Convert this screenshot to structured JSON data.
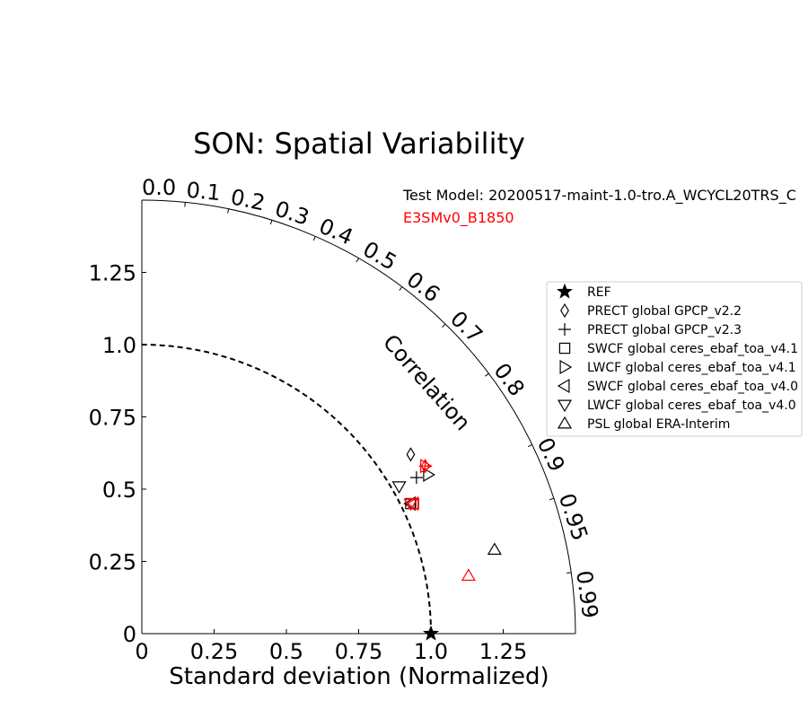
{
  "chart_data": {
    "type": "scatter",
    "subtype": "taylor-diagram",
    "title": "SON: Spatial Variability",
    "xlabel": "Standard deviation (Normalized)",
    "corr_axis_label": "Correlation",
    "std_range": [
      0,
      1.5
    ],
    "std_ticks": [
      {
        "value": 0,
        "label": "0"
      },
      {
        "value": 0.25,
        "label": "0.25"
      },
      {
        "value": 0.5,
        "label": "0.5"
      },
      {
        "value": 0.75,
        "label": "0.75"
      },
      {
        "value": 1.0,
        "label": "1.0"
      },
      {
        "value": 1.25,
        "label": "1.25"
      }
    ],
    "corr_ticks": [
      {
        "value": 0.0,
        "label": "0.0"
      },
      {
        "value": 0.1,
        "label": "0.1"
      },
      {
        "value": 0.2,
        "label": "0.2"
      },
      {
        "value": 0.3,
        "label": "0.3"
      },
      {
        "value": 0.4,
        "label": "0.4"
      },
      {
        "value": 0.5,
        "label": "0.5"
      },
      {
        "value": 0.6,
        "label": "0.6"
      },
      {
        "value": 0.7,
        "label": "0.7"
      },
      {
        "value": 0.8,
        "label": "0.8"
      },
      {
        "value": 0.9,
        "label": "0.9"
      },
      {
        "value": 0.95,
        "label": "0.95"
      },
      {
        "value": 0.99,
        "label": "0.99"
      }
    ],
    "reference_std": 1.0,
    "model_labels": [
      {
        "text": "Test Model: 20200517-maint-1.0-tro.A_WCYCL20TRS_C",
        "color": "#000000"
      },
      {
        "text": "E3SMv0_B1850",
        "color": "#ff0000"
      }
    ],
    "legend": {
      "placement": "right",
      "entries": [
        {
          "label": "REF",
          "marker": "star"
        },
        {
          "label": "PRECT global GPCP_v2.2",
          "marker": "diamond"
        },
        {
          "label": "PRECT global GPCP_v2.3",
          "marker": "plus"
        },
        {
          "label": "SWCF global ceres_ebaf_toa_v4.1",
          "marker": "square"
        },
        {
          "label": "LWCF global ceres_ebaf_toa_v4.1",
          "marker": "triangle-right"
        },
        {
          "label": "SWCF global ceres_ebaf_toa_v4.0",
          "marker": "triangle-left"
        },
        {
          "label": "LWCF global ceres_ebaf_toa_v4.0",
          "marker": "triangle-down"
        },
        {
          "label": "PSL global ERA-Interim",
          "marker": "triangle-up"
        }
      ]
    },
    "series": [
      {
        "model": "Test Model",
        "color": "#000000",
        "points": [
          {
            "variable": "PRECT global GPCP_v2.2",
            "marker": "diamond",
            "x": 0.93,
            "y": 0.62
          },
          {
            "variable": "PRECT global GPCP_v2.3",
            "marker": "plus",
            "x": 0.95,
            "y": 0.54
          },
          {
            "variable": "SWCF global ceres_ebaf_toa_v4.1",
            "marker": "square",
            "x": 0.93,
            "y": 0.45
          },
          {
            "variable": "LWCF global ceres_ebaf_toa_v4.1",
            "marker": "triangle-right",
            "x": 0.99,
            "y": 0.55
          },
          {
            "variable": "SWCF global ceres_ebaf_toa_v4.0",
            "marker": "triangle-left",
            "x": 0.93,
            "y": 0.45
          },
          {
            "variable": "LWCF global ceres_ebaf_toa_v4.0",
            "marker": "triangle-down",
            "x": 0.89,
            "y": 0.51
          },
          {
            "variable": "PSL global ERA-Interim",
            "marker": "triangle-up",
            "x": 1.22,
            "y": 0.29
          }
        ]
      },
      {
        "model": "E3SMv0_B1850",
        "color": "#ff0000",
        "points": [
          {
            "variable": "PRECT global GPCP_v2.2",
            "marker": "diamond",
            "x": 0.98,
            "y": 0.58
          },
          {
            "variable": "PRECT global GPCP_v2.3",
            "marker": "plus",
            "x": 0.98,
            "y": 0.58
          },
          {
            "variable": "SWCF global ceres_ebaf_toa_v4.1",
            "marker": "square",
            "x": 0.94,
            "y": 0.45
          },
          {
            "variable": "LWCF global ceres_ebaf_toa_v4.1",
            "marker": "triangle-right",
            "x": 0.98,
            "y": 0.58
          },
          {
            "variable": "SWCF global ceres_ebaf_toa_v4.0",
            "marker": "triangle-left",
            "x": 0.94,
            "y": 0.45
          },
          {
            "variable": "LWCF global ceres_ebaf_toa_v4.0",
            "marker": "triangle-down",
            "x": 0.93,
            "y": 0.45
          },
          {
            "variable": "PSL global ERA-Interim",
            "marker": "triangle-up",
            "x": 1.13,
            "y": 0.2
          }
        ]
      }
    ],
    "reference_point": {
      "label": "REF",
      "marker": "star",
      "x": 1.0,
      "y": 0.0,
      "color": "#000000"
    }
  }
}
